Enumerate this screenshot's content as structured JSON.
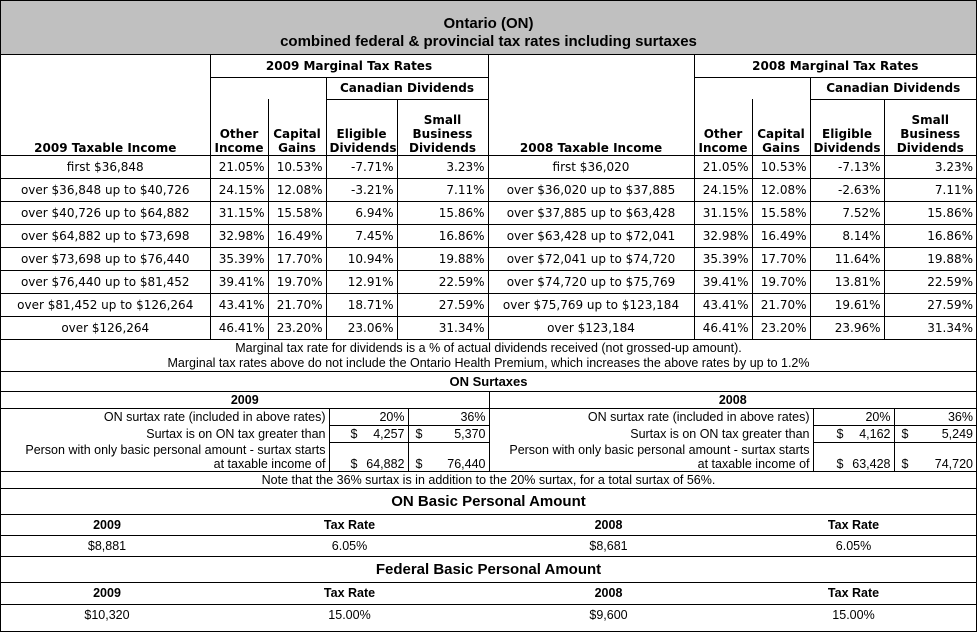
{
  "title": {
    "line1": "Ontario (ON)",
    "line2": "combined federal & provincial tax rates including surtaxes"
  },
  "rates": {
    "y2009": {
      "group_header": "2009 Marginal Tax Rates",
      "income_header": "2009 Taxable Income",
      "rows": [
        [
          "first $36,848",
          "21.05%",
          "10.53%",
          "-7.71%",
          "3.23%"
        ],
        [
          "over $36,848 up to $40,726",
          "24.15%",
          "12.08%",
          "-3.21%",
          "7.11%"
        ],
        [
          "over $40,726 up to $64,882",
          "31.15%",
          "15.58%",
          "6.94%",
          "15.86%"
        ],
        [
          "over $64,882 up to $73,698",
          "32.98%",
          "16.49%",
          "7.45%",
          "16.86%"
        ],
        [
          "over $73,698 up to $76,440",
          "35.39%",
          "17.70%",
          "10.94%",
          "19.88%"
        ],
        [
          "over $76,440 up to $81,452",
          "39.41%",
          "19.70%",
          "12.91%",
          "22.59%"
        ],
        [
          "over $81,452 up to $126,264",
          "43.41%",
          "21.70%",
          "18.71%",
          "27.59%"
        ],
        [
          "over $126,264",
          "46.41%",
          "23.20%",
          "23.06%",
          "31.34%"
        ]
      ]
    },
    "y2008": {
      "group_header": "2008 Marginal Tax Rates",
      "income_header": "2008 Taxable Income",
      "rows": [
        [
          "first $36,020",
          "21.05%",
          "10.53%",
          "-7.13%",
          "3.23%"
        ],
        [
          "over $36,020 up to $37,885",
          "24.15%",
          "12.08%",
          "-2.63%",
          "7.11%"
        ],
        [
          "over $37,885 up to $63,428",
          "31.15%",
          "15.58%",
          "7.52%",
          "15.86%"
        ],
        [
          "over $63,428 up to $72,041",
          "32.98%",
          "16.49%",
          "8.14%",
          "16.86%"
        ],
        [
          "over $72,041 up to $74,720",
          "35.39%",
          "17.70%",
          "11.64%",
          "19.88%"
        ],
        [
          "over $74,720 up to $75,769",
          "39.41%",
          "19.70%",
          "13.81%",
          "22.59%"
        ],
        [
          "over $75,769 up to $123,184",
          "43.41%",
          "21.70%",
          "19.61%",
          "27.59%"
        ],
        [
          "over $123,184",
          "46.41%",
          "23.20%",
          "23.96%",
          "31.34%"
        ]
      ]
    },
    "canadian_dividends": "Canadian Dividends",
    "col_other_1": "Other",
    "col_other_2": "Income",
    "col_capital_1": "Capital",
    "col_capital_2": "Gains",
    "col_eligible_1": "Eligible",
    "col_eligible_2": "Dividends",
    "col_small_1": "Small",
    "col_small_2": "Business",
    "col_small_3": "Dividends"
  },
  "notes": {
    "line1": "Marginal tax rate for dividends is a % of actual dividends received (not grossed-up amount).",
    "line2": "Marginal tax rates above do not include the Ontario Health Premium, which increases the above rates by up to 1.2%"
  },
  "surtaxes": {
    "title": "ON Surtaxes",
    "y2009": {
      "year": "2009",
      "rate_label": "ON surtax rate (included in above rates)",
      "rate_20": "20%",
      "rate_36": "36%",
      "threshold_label": "Surtax is on ON tax greater than",
      "dollar": "$",
      "thr_20": "4,257",
      "thr_36": "5,370",
      "person_label_1": "Person with only basic personal amount - surtax starts",
      "person_label_2": "at taxable income of",
      "inc_20": "64,882",
      "inc_36": "76,440"
    },
    "y2008": {
      "year": "2008",
      "rate_label": "ON surtax rate (included in above rates)",
      "rate_20": "20%",
      "rate_36": "36%",
      "threshold_label": "Surtax is on ON tax greater than",
      "dollar": "$",
      "thr_20": "4,162",
      "thr_36": "5,249",
      "person_label_1": "Person with only basic personal amount - surtax starts",
      "person_label_2": "at taxable income of",
      "inc_20": "63,428",
      "inc_36": "74,720"
    },
    "note": "Note that the 36% surtax is in addition to the 20% surtax, for a total surtax of 56%."
  },
  "on_bpa": {
    "title": "ON Basic Personal Amount",
    "h_2009": "2009",
    "h_rate_1": "Tax Rate",
    "h_2008": "2008",
    "h_rate_2": "Tax Rate",
    "v_2009": "$8,881",
    "v_rate_1": "6.05%",
    "v_2008": "$8,681",
    "v_rate_2": "6.05%"
  },
  "fed_bpa": {
    "title": "Federal Basic Personal Amount",
    "h_2009": "2009",
    "h_rate_1": "Tax Rate",
    "h_2008": "2008",
    "h_rate_2": "Tax Rate",
    "v_2009": "$10,320",
    "v_rate_1": "15.00%",
    "v_2008": "$9,600",
    "v_rate_2": "15.00%"
  }
}
